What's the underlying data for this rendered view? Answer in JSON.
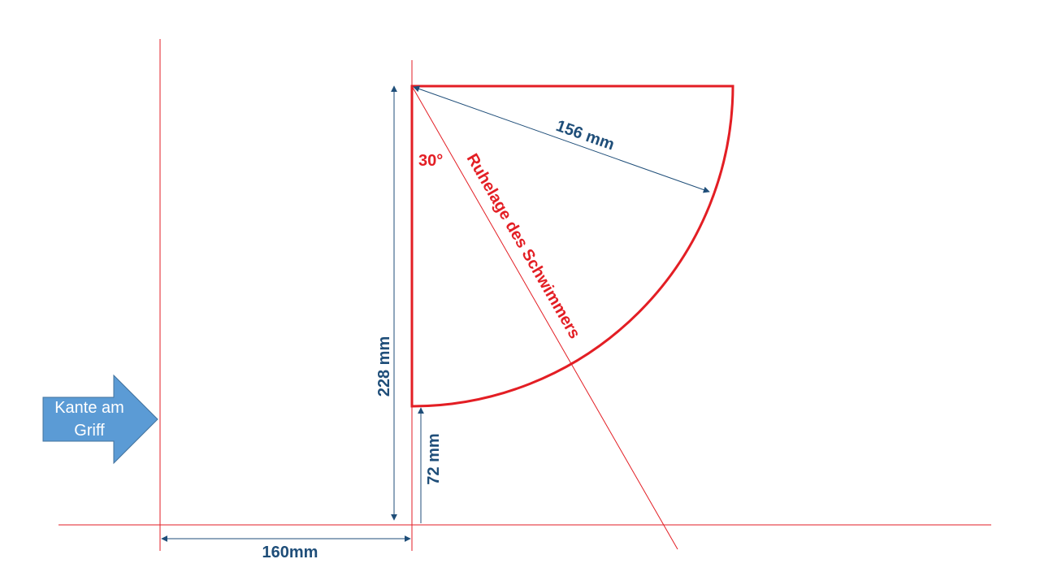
{
  "colors": {
    "red": "#e31e24",
    "dimension": "#1f4e79",
    "arrow_fill": "#5b9bd5",
    "arrow_stroke": "#41719c"
  },
  "labels": {
    "radius": "156 mm",
    "angle": "30°",
    "rest_position": "Ruhelage des Schwimmers",
    "height_total": "228 mm",
    "height_bottom": "72 mm",
    "horizontal_distance": "160mm",
    "edge_arrow_line1": "Kante am",
    "edge_arrow_line2": "Griff"
  }
}
